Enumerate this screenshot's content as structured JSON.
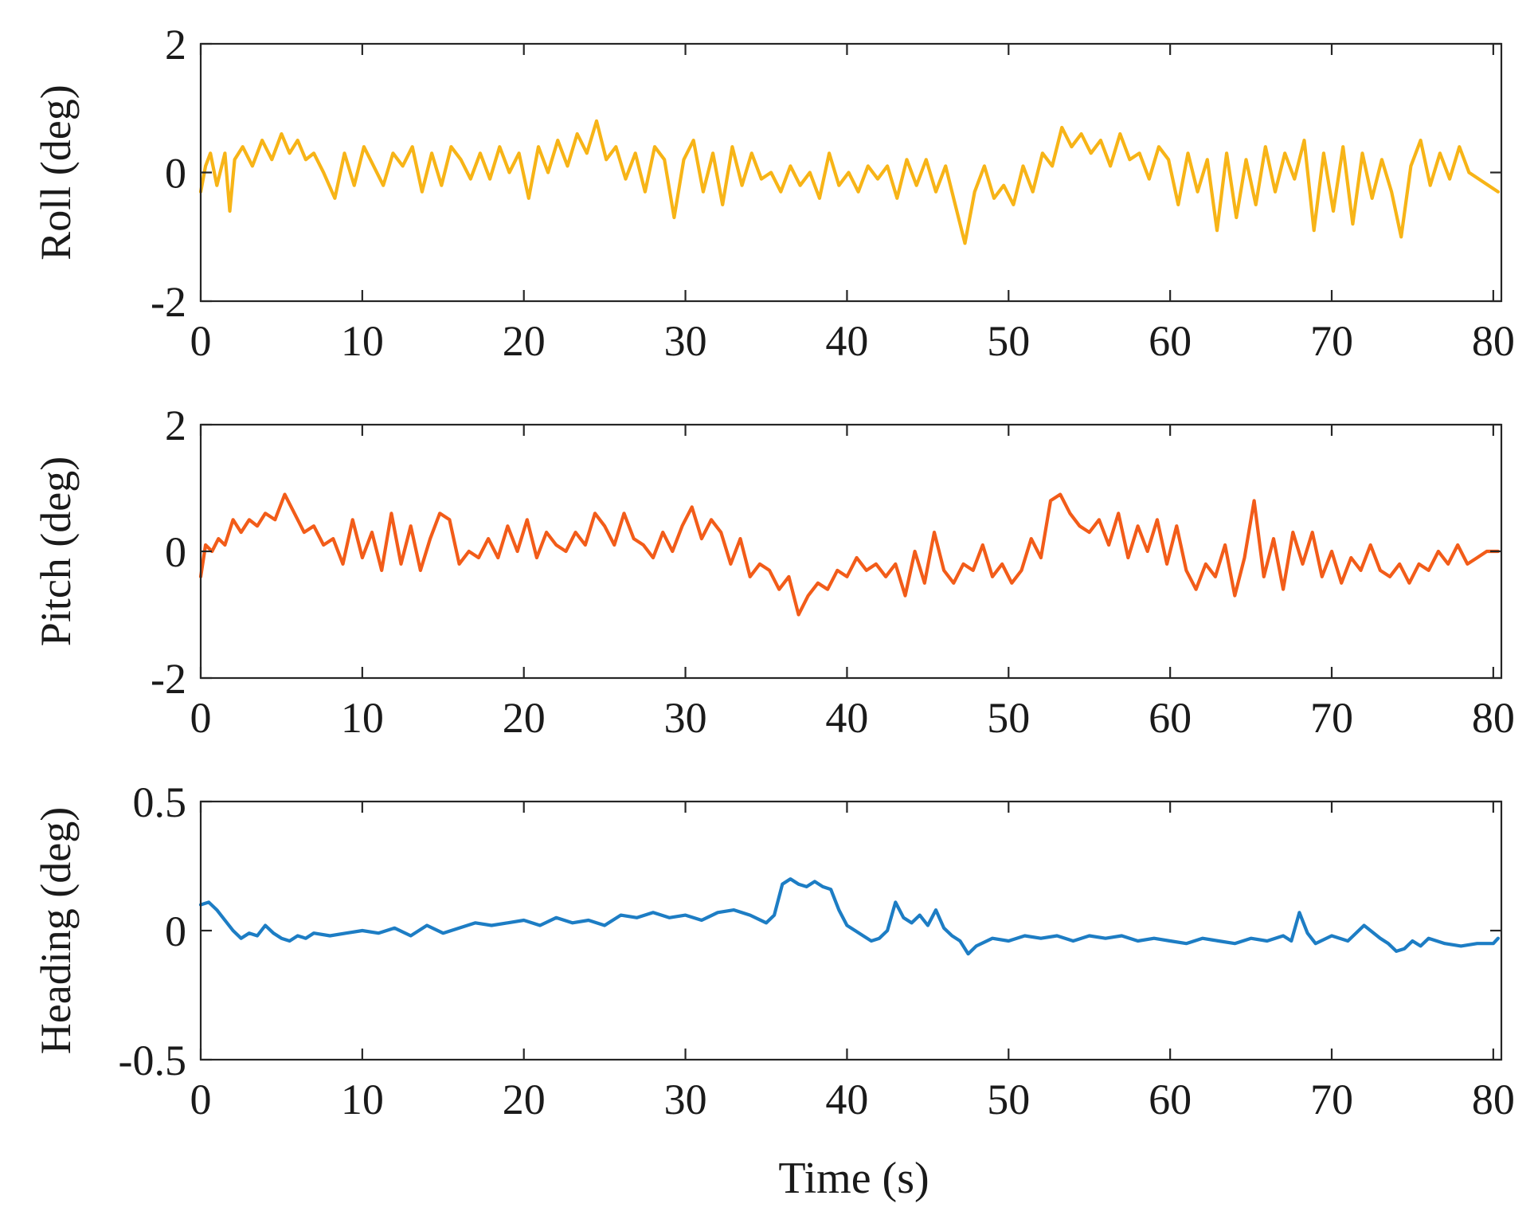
{
  "chart_data": [
    {
      "type": "line",
      "title": "",
      "xlabel": "",
      "ylabel": "Roll (deg)",
      "xlim": [
        0,
        80.5
      ],
      "ylim": [
        -2,
        2
      ],
      "xticks": [
        0,
        10,
        20,
        30,
        40,
        50,
        60,
        70,
        80
      ],
      "xtick_labels": [
        "0",
        "10",
        "20",
        "30",
        "40",
        "50",
        "60",
        "70",
        "80"
      ],
      "yticks": [
        -2,
        0,
        2
      ],
      "ytick_labels": [
        "-2",
        "0",
        "2"
      ],
      "grid": false,
      "series": [
        {
          "name": "Roll",
          "color": "#F7B417",
          "x": [
            0,
            0.3,
            0.6,
            1.0,
            1.5,
            1.8,
            2.1,
            2.6,
            3.2,
            3.8,
            4.4,
            5.0,
            5.5,
            6.0,
            6.5,
            7.0,
            7.6,
            8.3,
            8.9,
            9.5,
            10.1,
            10.7,
            11.3,
            11.9,
            12.5,
            13.1,
            13.7,
            14.3,
            14.9,
            15.5,
            16.1,
            16.7,
            17.3,
            17.9,
            18.5,
            19.1,
            19.7,
            20.3,
            20.9,
            21.5,
            22.1,
            22.7,
            23.3,
            23.9,
            24.5,
            25.1,
            25.7,
            26.3,
            26.9,
            27.5,
            28.1,
            28.7,
            29.3,
            29.9,
            30.5,
            31.1,
            31.7,
            32.3,
            32.9,
            33.5,
            34.1,
            34.7,
            35.3,
            35.9,
            36.5,
            37.1,
            37.7,
            38.3,
            38.9,
            39.5,
            40.1,
            40.7,
            41.3,
            41.9,
            42.5,
            43.1,
            43.7,
            44.3,
            44.9,
            45.5,
            46.1,
            46.7,
            47.3,
            47.9,
            48.5,
            49.1,
            49.7,
            50.3,
            50.9,
            51.5,
            52.1,
            52.7,
            53.3,
            53.9,
            54.5,
            55.1,
            55.7,
            56.3,
            56.9,
            57.5,
            58.1,
            58.7,
            59.3,
            59.9,
            60.5,
            61.1,
            61.7,
            62.3,
            62.9,
            63.5,
            64.1,
            64.7,
            65.3,
            65.9,
            66.5,
            67.1,
            67.7,
            68.3,
            68.9,
            69.5,
            70.1,
            70.7,
            71.3,
            71.9,
            72.5,
            73.1,
            73.7,
            74.3,
            74.9,
            75.5,
            76.1,
            76.7,
            77.3,
            77.9,
            78.5,
            79.1,
            79.7,
            80.3
          ],
          "y": [
            -0.3,
            0.1,
            0.3,
            -0.2,
            0.3,
            -0.6,
            0.2,
            0.4,
            0.1,
            0.5,
            0.2,
            0.6,
            0.3,
            0.5,
            0.2,
            0.3,
            0.0,
            -0.4,
            0.3,
            -0.2,
            0.4,
            0.1,
            -0.2,
            0.3,
            0.1,
            0.4,
            -0.3,
            0.3,
            -0.2,
            0.4,
            0.2,
            -0.1,
            0.3,
            -0.1,
            0.4,
            0.0,
            0.3,
            -0.4,
            0.4,
            0.0,
            0.5,
            0.1,
            0.6,
            0.3,
            0.8,
            0.2,
            0.4,
            -0.1,
            0.3,
            -0.3,
            0.4,
            0.2,
            -0.7,
            0.2,
            0.5,
            -0.3,
            0.3,
            -0.5,
            0.4,
            -0.2,
            0.3,
            -0.1,
            0.0,
            -0.3,
            0.1,
            -0.2,
            0.0,
            -0.4,
            0.3,
            -0.2,
            0.0,
            -0.3,
            0.1,
            -0.1,
            0.1,
            -0.4,
            0.2,
            -0.2,
            0.2,
            -0.3,
            0.1,
            -0.5,
            -1.1,
            -0.3,
            0.1,
            -0.4,
            -0.2,
            -0.5,
            0.1,
            -0.3,
            0.3,
            0.1,
            0.7,
            0.4,
            0.6,
            0.3,
            0.5,
            0.1,
            0.6,
            0.2,
            0.3,
            -0.1,
            0.4,
            0.2,
            -0.5,
            0.3,
            -0.3,
            0.2,
            -0.9,
            0.3,
            -0.7,
            0.2,
            -0.5,
            0.4,
            -0.3,
            0.3,
            -0.1,
            0.5,
            -0.9,
            0.3,
            -0.6,
            0.4,
            -0.8,
            0.3,
            -0.4,
            0.2,
            -0.3,
            -1.0,
            0.1,
            0.5,
            -0.2,
            0.3,
            -0.1,
            0.4,
            0.0,
            -0.1,
            -0.2,
            -0.3
          ]
        }
      ]
    },
    {
      "type": "line",
      "title": "",
      "xlabel": "",
      "ylabel": "Pitch (deg)",
      "xlim": [
        0,
        80.5
      ],
      "ylim": [
        -2,
        2
      ],
      "xticks": [
        0,
        10,
        20,
        30,
        40,
        50,
        60,
        70,
        80
      ],
      "xtick_labels": [
        "0",
        "10",
        "20",
        "30",
        "40",
        "50",
        "60",
        "70",
        "80"
      ],
      "yticks": [
        -2,
        0,
        2
      ],
      "ytick_labels": [
        "-2",
        "0",
        "2"
      ],
      "grid": false,
      "series": [
        {
          "name": "Pitch",
          "color": "#F25C19",
          "x": [
            0,
            0.3,
            0.7,
            1.1,
            1.5,
            2.0,
            2.5,
            3.0,
            3.5,
            4.0,
            4.6,
            5.2,
            5.8,
            6.4,
            7.0,
            7.6,
            8.2,
            8.8,
            9.4,
            10.0,
            10.6,
            11.2,
            11.8,
            12.4,
            13.0,
            13.6,
            14.2,
            14.8,
            15.4,
            16.0,
            16.6,
            17.2,
            17.8,
            18.4,
            19.0,
            19.6,
            20.2,
            20.8,
            21.4,
            22.0,
            22.6,
            23.2,
            23.8,
            24.4,
            25.0,
            25.6,
            26.2,
            26.8,
            27.4,
            28.0,
            28.6,
            29.2,
            29.8,
            30.4,
            31.0,
            31.6,
            32.2,
            32.8,
            33.4,
            34.0,
            34.6,
            35.2,
            35.8,
            36.4,
            37.0,
            37.6,
            38.2,
            38.8,
            39.4,
            40.0,
            40.6,
            41.2,
            41.8,
            42.4,
            43.0,
            43.6,
            44.2,
            44.8,
            45.4,
            46.0,
            46.6,
            47.2,
            47.8,
            48.4,
            49.0,
            49.6,
            50.2,
            50.8,
            51.4,
            52.0,
            52.6,
            53.2,
            53.8,
            54.4,
            55.0,
            55.6,
            56.2,
            56.8,
            57.4,
            58.0,
            58.6,
            59.2,
            59.8,
            60.4,
            61.0,
            61.6,
            62.2,
            62.8,
            63.4,
            64.0,
            64.6,
            65.2,
            65.8,
            66.4,
            67.0,
            67.6,
            68.2,
            68.8,
            69.4,
            70.0,
            70.6,
            71.2,
            71.8,
            72.4,
            73.0,
            73.6,
            74.2,
            74.8,
            75.4,
            76.0,
            76.6,
            77.2,
            77.8,
            78.4,
            79.0,
            79.6,
            80.3
          ],
          "y": [
            -0.4,
            0.1,
            0.0,
            0.2,
            0.1,
            0.5,
            0.3,
            0.5,
            0.4,
            0.6,
            0.5,
            0.9,
            0.6,
            0.3,
            0.4,
            0.1,
            0.2,
            -0.2,
            0.5,
            -0.1,
            0.3,
            -0.3,
            0.6,
            -0.2,
            0.4,
            -0.3,
            0.2,
            0.6,
            0.5,
            -0.2,
            0.0,
            -0.1,
            0.2,
            -0.1,
            0.4,
            0.0,
            0.5,
            -0.1,
            0.3,
            0.1,
            0.0,
            0.3,
            0.1,
            0.6,
            0.4,
            0.1,
            0.6,
            0.2,
            0.1,
            -0.1,
            0.3,
            0.0,
            0.4,
            0.7,
            0.2,
            0.5,
            0.3,
            -0.2,
            0.2,
            -0.4,
            -0.2,
            -0.3,
            -0.6,
            -0.4,
            -1.0,
            -0.7,
            -0.5,
            -0.6,
            -0.3,
            -0.4,
            -0.1,
            -0.3,
            -0.2,
            -0.4,
            -0.2,
            -0.7,
            0.0,
            -0.5,
            0.3,
            -0.3,
            -0.5,
            -0.2,
            -0.3,
            0.1,
            -0.4,
            -0.2,
            -0.5,
            -0.3,
            0.2,
            -0.1,
            0.8,
            0.9,
            0.6,
            0.4,
            0.3,
            0.5,
            0.1,
            0.6,
            -0.1,
            0.4,
            0.0,
            0.5,
            -0.2,
            0.4,
            -0.3,
            -0.6,
            -0.2,
            -0.4,
            0.1,
            -0.7,
            -0.1,
            0.8,
            -0.4,
            0.2,
            -0.6,
            0.3,
            -0.2,
            0.3,
            -0.4,
            0.0,
            -0.5,
            -0.1,
            -0.3,
            0.1,
            -0.3,
            -0.4,
            -0.2,
            -0.5,
            -0.2,
            -0.3,
            0.0,
            -0.2,
            0.1,
            -0.2,
            -0.1,
            0.0,
            0.0
          ]
        }
      ]
    },
    {
      "type": "line",
      "title": "",
      "xlabel": "Time (s)",
      "ylabel": "Heading (deg)",
      "xlim": [
        0,
        80.5
      ],
      "ylim": [
        -0.5,
        0.5
      ],
      "xticks": [
        0,
        10,
        20,
        30,
        40,
        50,
        60,
        70,
        80
      ],
      "xtick_labels": [
        "0",
        "10",
        "20",
        "30",
        "40",
        "50",
        "60",
        "70",
        "80"
      ],
      "yticks": [
        -0.5,
        0,
        0.5
      ],
      "ytick_labels": [
        "-0.5",
        "0",
        "0.5"
      ],
      "grid": false,
      "series": [
        {
          "name": "Heading",
          "color": "#1D7DC4",
          "x": [
            0,
            0.5,
            1.0,
            1.5,
            2.0,
            2.5,
            3.0,
            3.5,
            4.0,
            4.5,
            5.0,
            5.5,
            6.0,
            6.5,
            7.0,
            8.0,
            9.0,
            10.0,
            11.0,
            12.0,
            13.0,
            14.0,
            15.0,
            16.0,
            17.0,
            18.0,
            19.0,
            20.0,
            21.0,
            22.0,
            23.0,
            24.0,
            25.0,
            26.0,
            27.0,
            28.0,
            29.0,
            30.0,
            31.0,
            32.0,
            33.0,
            34.0,
            35.0,
            35.5,
            36.0,
            36.5,
            37.0,
            37.5,
            38.0,
            38.5,
            39.0,
            39.5,
            40.0,
            40.5,
            41.0,
            41.5,
            42.0,
            42.5,
            43.0,
            43.5,
            44.0,
            44.5,
            45.0,
            45.5,
            46.0,
            46.5,
            47.0,
            47.5,
            48.0,
            49.0,
            50.0,
            51.0,
            52.0,
            53.0,
            54.0,
            55.0,
            56.0,
            57.0,
            58.0,
            59.0,
            60.0,
            61.0,
            62.0,
            63.0,
            64.0,
            65.0,
            66.0,
            67.0,
            67.5,
            68.0,
            68.5,
            69.0,
            70.0,
            71.0,
            72.0,
            73.0,
            73.5,
            74.0,
            74.5,
            75.0,
            75.5,
            76.0,
            77.0,
            78.0,
            79.0,
            80.0,
            80.3
          ],
          "y": [
            0.1,
            0.11,
            0.08,
            0.04,
            0.0,
            -0.03,
            -0.01,
            -0.02,
            0.02,
            -0.01,
            -0.03,
            -0.04,
            -0.02,
            -0.03,
            -0.01,
            -0.02,
            -0.01,
            0.0,
            -0.01,
            0.01,
            -0.02,
            0.02,
            -0.01,
            0.01,
            0.03,
            0.02,
            0.03,
            0.04,
            0.02,
            0.05,
            0.03,
            0.04,
            0.02,
            0.06,
            0.05,
            0.07,
            0.05,
            0.06,
            0.04,
            0.07,
            0.08,
            0.06,
            0.03,
            0.06,
            0.18,
            0.2,
            0.18,
            0.17,
            0.19,
            0.17,
            0.16,
            0.08,
            0.02,
            0.0,
            -0.02,
            -0.04,
            -0.03,
            0.0,
            0.11,
            0.05,
            0.03,
            0.06,
            0.02,
            0.08,
            0.01,
            -0.02,
            -0.04,
            -0.09,
            -0.06,
            -0.03,
            -0.04,
            -0.02,
            -0.03,
            -0.02,
            -0.04,
            -0.02,
            -0.03,
            -0.02,
            -0.04,
            -0.03,
            -0.04,
            -0.05,
            -0.03,
            -0.04,
            -0.05,
            -0.03,
            -0.04,
            -0.02,
            -0.04,
            0.07,
            -0.01,
            -0.05,
            -0.02,
            -0.04,
            0.02,
            -0.03,
            -0.05,
            -0.08,
            -0.07,
            -0.04,
            -0.06,
            -0.03,
            -0.05,
            -0.06,
            -0.05,
            -0.05,
            -0.03
          ]
        }
      ]
    }
  ]
}
